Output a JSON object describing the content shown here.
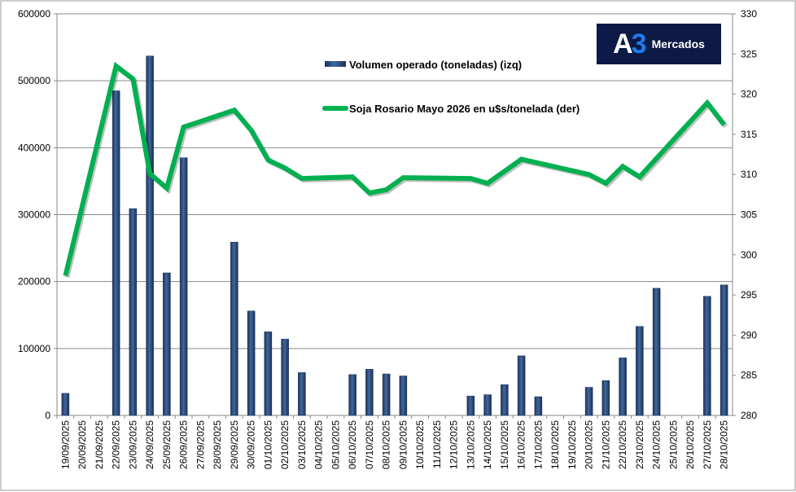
{
  "chart_data": {
    "type": "bar+line",
    "categories": [
      "19/09/2025",
      "20/09/2025",
      "21/09/2025",
      "22/09/2025",
      "23/09/2025",
      "24/09/2025",
      "25/09/2025",
      "26/09/2025",
      "27/09/2025",
      "28/09/2025",
      "29/09/2025",
      "30/09/2025",
      "01/10/2025",
      "02/10/2025",
      "03/10/2025",
      "04/10/2025",
      "05/10/2025",
      "06/10/2025",
      "07/10/2025",
      "08/10/2025",
      "09/10/2025",
      "10/10/2025",
      "11/10/2025",
      "12/10/2025",
      "13/10/2025",
      "14/10/2025",
      "15/10/2025",
      "16/10/2025",
      "17/10/2025",
      "18/10/2025",
      "19/10/2025",
      "20/10/2025",
      "21/10/2025",
      "22/10/2025",
      "23/10/2025",
      "24/10/2025",
      "25/10/2025",
      "26/10/2025",
      "27/10/2025",
      "28/10/2025"
    ],
    "series": [
      {
        "name": "Volumen operado (toneladas) (izq)",
        "type": "bar",
        "axis": "left",
        "color": "#2e4f7f",
        "values": [
          33000,
          0,
          0,
          485000,
          309000,
          537000,
          213000,
          385000,
          0,
          0,
          259000,
          156000,
          125000,
          114000,
          64000,
          0,
          0,
          61000,
          69000,
          62000,
          59000,
          0,
          0,
          0,
          29000,
          31000,
          46000,
          89000,
          28000,
          0,
          0,
          42000,
          52000,
          86000,
          133000,
          190000,
          0,
          0,
          178000,
          195000
        ]
      },
      {
        "name": "Soja Rosario Mayo 2026  en u$s/tonelada (der)",
        "type": "line",
        "axis": "right",
        "color": "#00b050",
        "values": [
          297.4,
          null,
          null,
          323.5,
          321.9,
          310.1,
          308.3,
          315.9,
          null,
          null,
          318.0,
          315.5,
          311.8,
          310.8,
          309.5,
          null,
          null,
          309.7,
          307.7,
          308.1,
          309.6,
          null,
          null,
          null,
          309.5,
          308.9,
          null,
          311.9,
          null,
          null,
          null,
          310.0,
          308.9,
          311.0,
          309.7,
          null,
          null,
          null,
          318.9,
          316.2
        ]
      }
    ],
    "y_left": {
      "min": 0,
      "max": 600000,
      "ticks": [
        "0",
        "100000",
        "200000",
        "300000",
        "400000",
        "500000",
        "600000"
      ]
    },
    "y_right": {
      "min": 280,
      "max": 330,
      "ticks": [
        "280",
        "285",
        "290",
        "295",
        "300",
        "305",
        "310",
        "315",
        "320",
        "325",
        "330"
      ]
    },
    "grid": true,
    "legend": "top-center"
  },
  "logo": {
    "a": "A",
    "three": "3",
    "name": "Mercados"
  }
}
